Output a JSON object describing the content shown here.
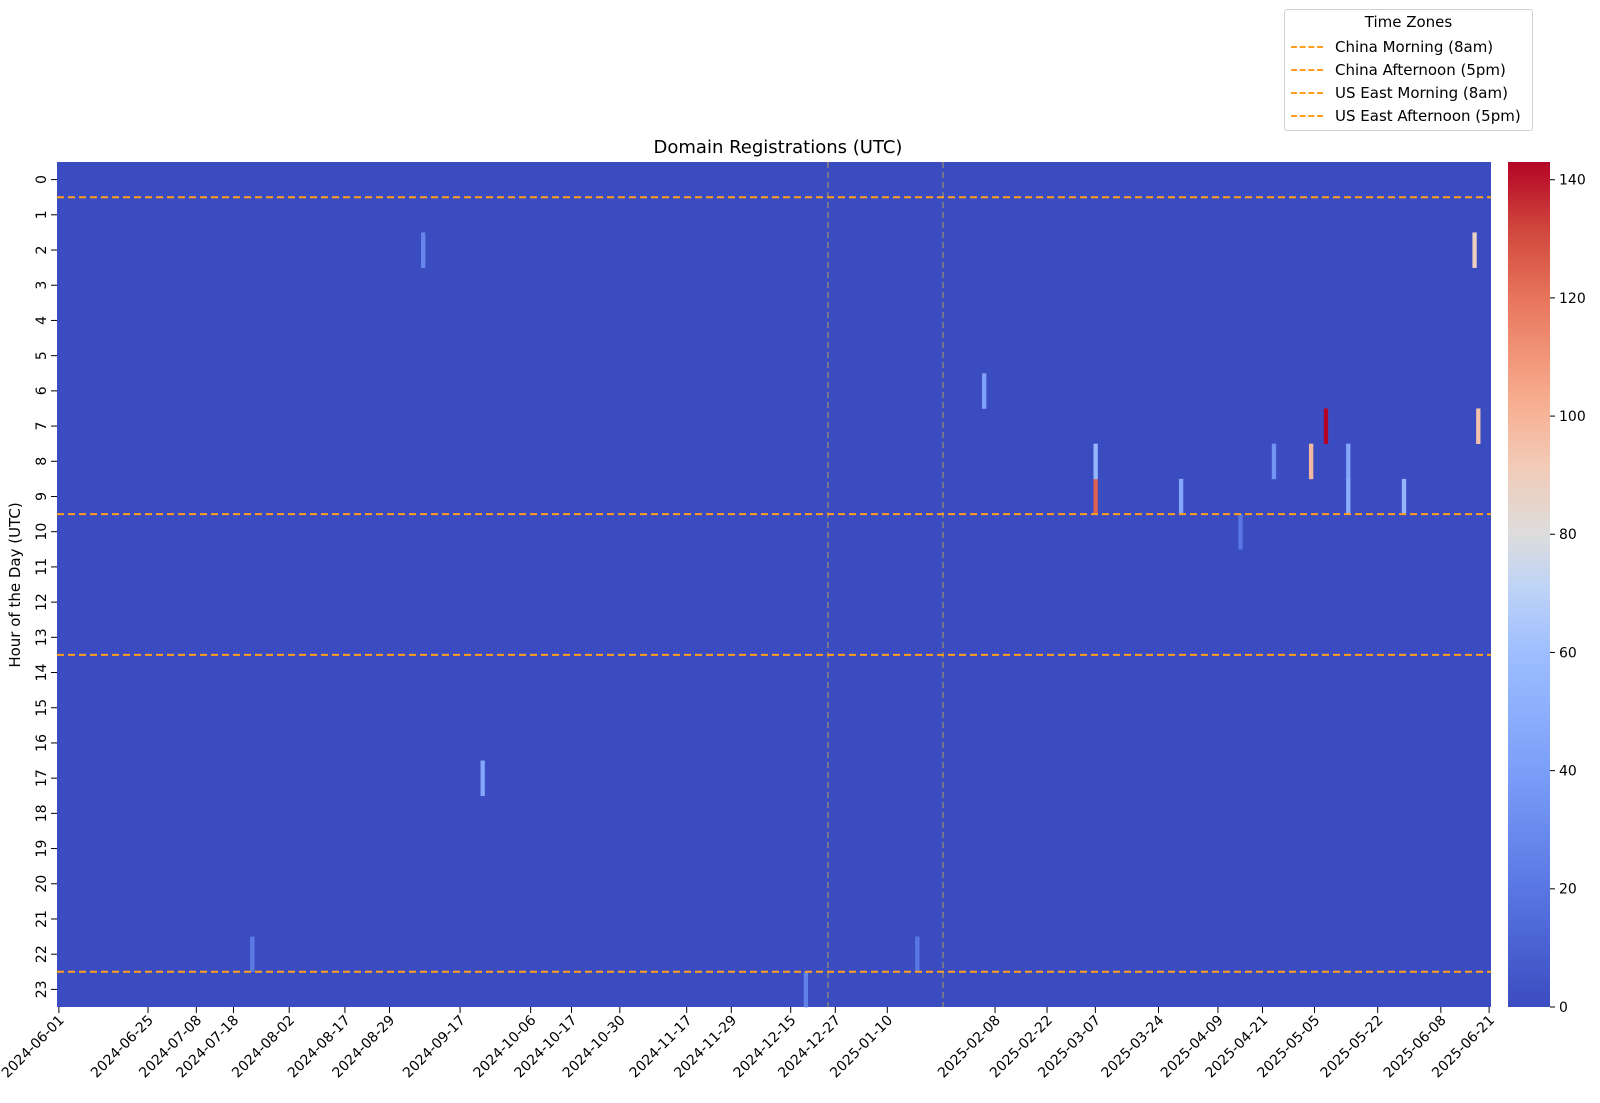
{
  "chart_data": {
    "type": "heatmap",
    "title": "Domain Registrations (UTC)",
    "ylabel": "Hour of the Day (UTC)",
    "xlabel": "",
    "y_categories": [
      0,
      1,
      2,
      3,
      4,
      5,
      6,
      7,
      8,
      9,
      10,
      11,
      12,
      13,
      14,
      15,
      16,
      17,
      18,
      19,
      20,
      21,
      22,
      23
    ],
    "x_tick_labels": [
      "2024-06-01",
      "2024-06-25",
      "2024-07-08",
      "2024-07-18",
      "2024-08-02",
      "2024-08-17",
      "2024-08-29",
      "2024-09-17",
      "2024-10-06",
      "2024-10-17",
      "2024-10-30",
      "2024-11-17",
      "2024-11-29",
      "2024-12-15",
      "2024-12-27",
      "2025-01-10",
      "2025-02-08",
      "2025-02-22",
      "2025-03-07",
      "2025-03-24",
      "2025-04-09",
      "2025-04-21",
      "2025-05-05",
      "2025-05-22",
      "2025-06-08",
      "2025-06-21"
    ],
    "x_range": [
      "2024-06-01",
      "2025-06-21"
    ],
    "colormap": "coolwarm",
    "colorbar": {
      "min": 0,
      "max": 143,
      "ticks": [
        0,
        20,
        40,
        60,
        80,
        100,
        120,
        140
      ]
    },
    "background_value": 0,
    "notable_cells": [
      {
        "date": "2025-05-08",
        "hour": 7,
        "value": 143
      },
      {
        "date": "2025-03-07",
        "hour": 9,
        "value": 125
      },
      {
        "date": "2025-06-17",
        "hour": 2,
        "value": 88
      },
      {
        "date": "2025-06-18",
        "hour": 7,
        "value": 95
      },
      {
        "date": "2025-05-04",
        "hour": 8,
        "value": 98
      },
      {
        "date": "2025-03-07",
        "hour": 8,
        "value": 55
      },
      {
        "date": "2025-05-14",
        "hour": 8,
        "value": 45
      },
      {
        "date": "2025-05-14",
        "hour": 9,
        "value": 50
      },
      {
        "date": "2025-05-29",
        "hour": 9,
        "value": 55
      },
      {
        "date": "2025-03-30",
        "hour": 9,
        "value": 45
      },
      {
        "date": "2025-04-24",
        "hour": 8,
        "value": 35
      },
      {
        "date": "2025-02-05",
        "hour": 6,
        "value": 42
      },
      {
        "date": "2024-09-23",
        "hour": 17,
        "value": 45
      },
      {
        "date": "2024-09-07",
        "hour": 2,
        "value": 28
      },
      {
        "date": "2024-12-19",
        "hour": 23,
        "value": 25
      },
      {
        "date": "2025-04-15",
        "hour": 10,
        "value": 20
      },
      {
        "date": "2024-07-23",
        "hour": 22,
        "value": 22
      },
      {
        "date": "2025-01-18",
        "hour": 22,
        "value": 20
      }
    ],
    "vertical_reference_lines": [
      {
        "date": "2024-12-25",
        "color": "#808080",
        "style": "dashed"
      },
      {
        "date": "2025-01-25",
        "color": "#808080",
        "style": "dashed"
      }
    ],
    "horizontal_reference_lines": [
      {
        "name": "China Morning (8am)",
        "hour_utc": 0,
        "color": "#ff9f1c",
        "style": "dashed"
      },
      {
        "name": "China Afternoon (5pm)",
        "hour_utc": 9,
        "color": "#ff9f1c",
        "style": "dashed"
      },
      {
        "name": "US East Morning (8am)",
        "hour_utc": 13,
        "color": "#ff9f1c",
        "style": "dashed"
      },
      {
        "name": "US East Afternoon (5pm)",
        "hour_utc": 22,
        "color": "#ff9f1c",
        "style": "dashed"
      }
    ],
    "legend": {
      "title": "Time Zones",
      "placement": "top-right, outside plot",
      "items": [
        "China Morning (8am)",
        "China Afternoon (5pm)",
        "US East Morning (8am)",
        "US East Afternoon (5pm)"
      ]
    }
  }
}
